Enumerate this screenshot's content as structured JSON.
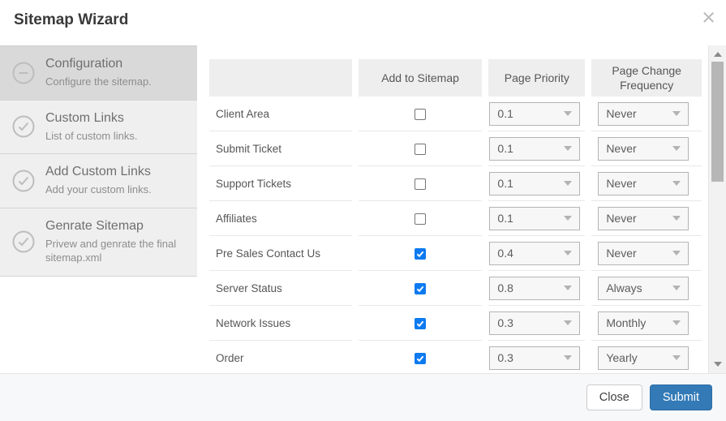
{
  "modal": {
    "title": "Sitemap Wizard",
    "close_glyph": "×"
  },
  "sidebar": {
    "steps": [
      {
        "title": "Configuration",
        "subtitle": "Configure the sitemap.",
        "icon": "minus-circle",
        "active": true
      },
      {
        "title": "Custom Links",
        "subtitle": "List of custom links.",
        "icon": "check-circle",
        "active": false
      },
      {
        "title": "Add Custom Links",
        "subtitle": "Add your custom links.",
        "icon": "check-circle",
        "active": false
      },
      {
        "title": "Genrate Sitemap",
        "subtitle": "Privew and genrate the final sitemap.xml",
        "icon": "check-circle",
        "active": false
      }
    ]
  },
  "table": {
    "headers": [
      "",
      "Add to Sitemap",
      "Page Priority",
      "Page Change Frequency"
    ],
    "rows": [
      {
        "label": "Client Area",
        "checked": false,
        "priority": "0.1",
        "frequency": "Never"
      },
      {
        "label": "Submit Ticket",
        "checked": false,
        "priority": "0.1",
        "frequency": "Never"
      },
      {
        "label": "Support Tickets",
        "checked": false,
        "priority": "0.1",
        "frequency": "Never"
      },
      {
        "label": "Affiliates",
        "checked": false,
        "priority": "0.1",
        "frequency": "Never"
      },
      {
        "label": "Pre Sales Contact Us",
        "checked": true,
        "priority": "0.4",
        "frequency": "Never"
      },
      {
        "label": "Server Status",
        "checked": true,
        "priority": "0.8",
        "frequency": "Always"
      },
      {
        "label": "Network Issues",
        "checked": true,
        "priority": "0.3",
        "frequency": "Monthly"
      },
      {
        "label": "Order",
        "checked": true,
        "priority": "0.3",
        "frequency": "Yearly"
      }
    ]
  },
  "footer": {
    "close_label": "Close",
    "submit_label": "Submit"
  },
  "colors": {
    "accent_blue": "#337ab7",
    "checkbox_blue": "#0d7af0",
    "active_step_bg": "#d9d9d9",
    "step_bg": "#efefef",
    "header_cell_bg": "#eeeeee"
  }
}
